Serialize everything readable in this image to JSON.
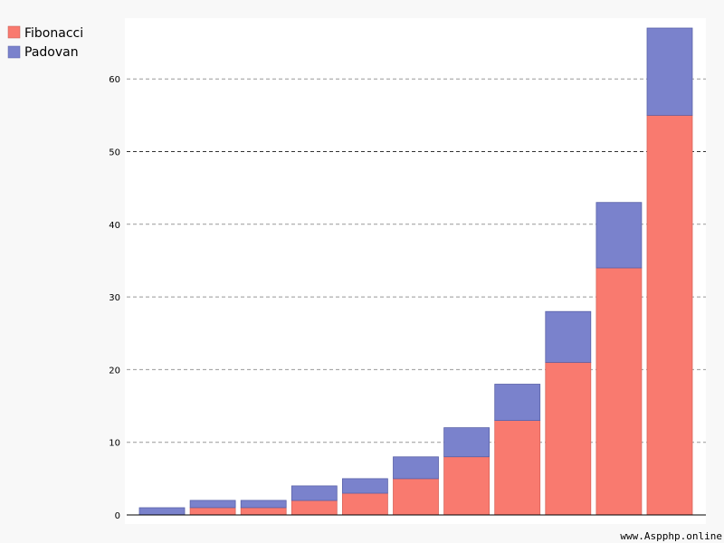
{
  "chart_data": {
    "type": "bar",
    "stacked": true,
    "categories": [
      "",
      "",
      "",
      "",
      "",
      "",
      "",
      "",
      "",
      "",
      ""
    ],
    "series": [
      {
        "name": "Fibonacci",
        "color": "#f97a6f",
        "values": [
          0,
          1,
          1,
          2,
          3,
          5,
          8,
          13,
          21,
          34,
          55
        ]
      },
      {
        "name": "Padovan",
        "color": "#7a82cc",
        "values": [
          1,
          1,
          1,
          2,
          2,
          3,
          4,
          5,
          7,
          9,
          12
        ]
      }
    ],
    "ylim": [
      0,
      67
    ],
    "yticks": [
      0,
      10,
      20,
      30,
      40,
      50,
      60
    ],
    "grid": "horizontal dashed",
    "legend": "top-left"
  },
  "watermark": "www.Aspphp.online"
}
